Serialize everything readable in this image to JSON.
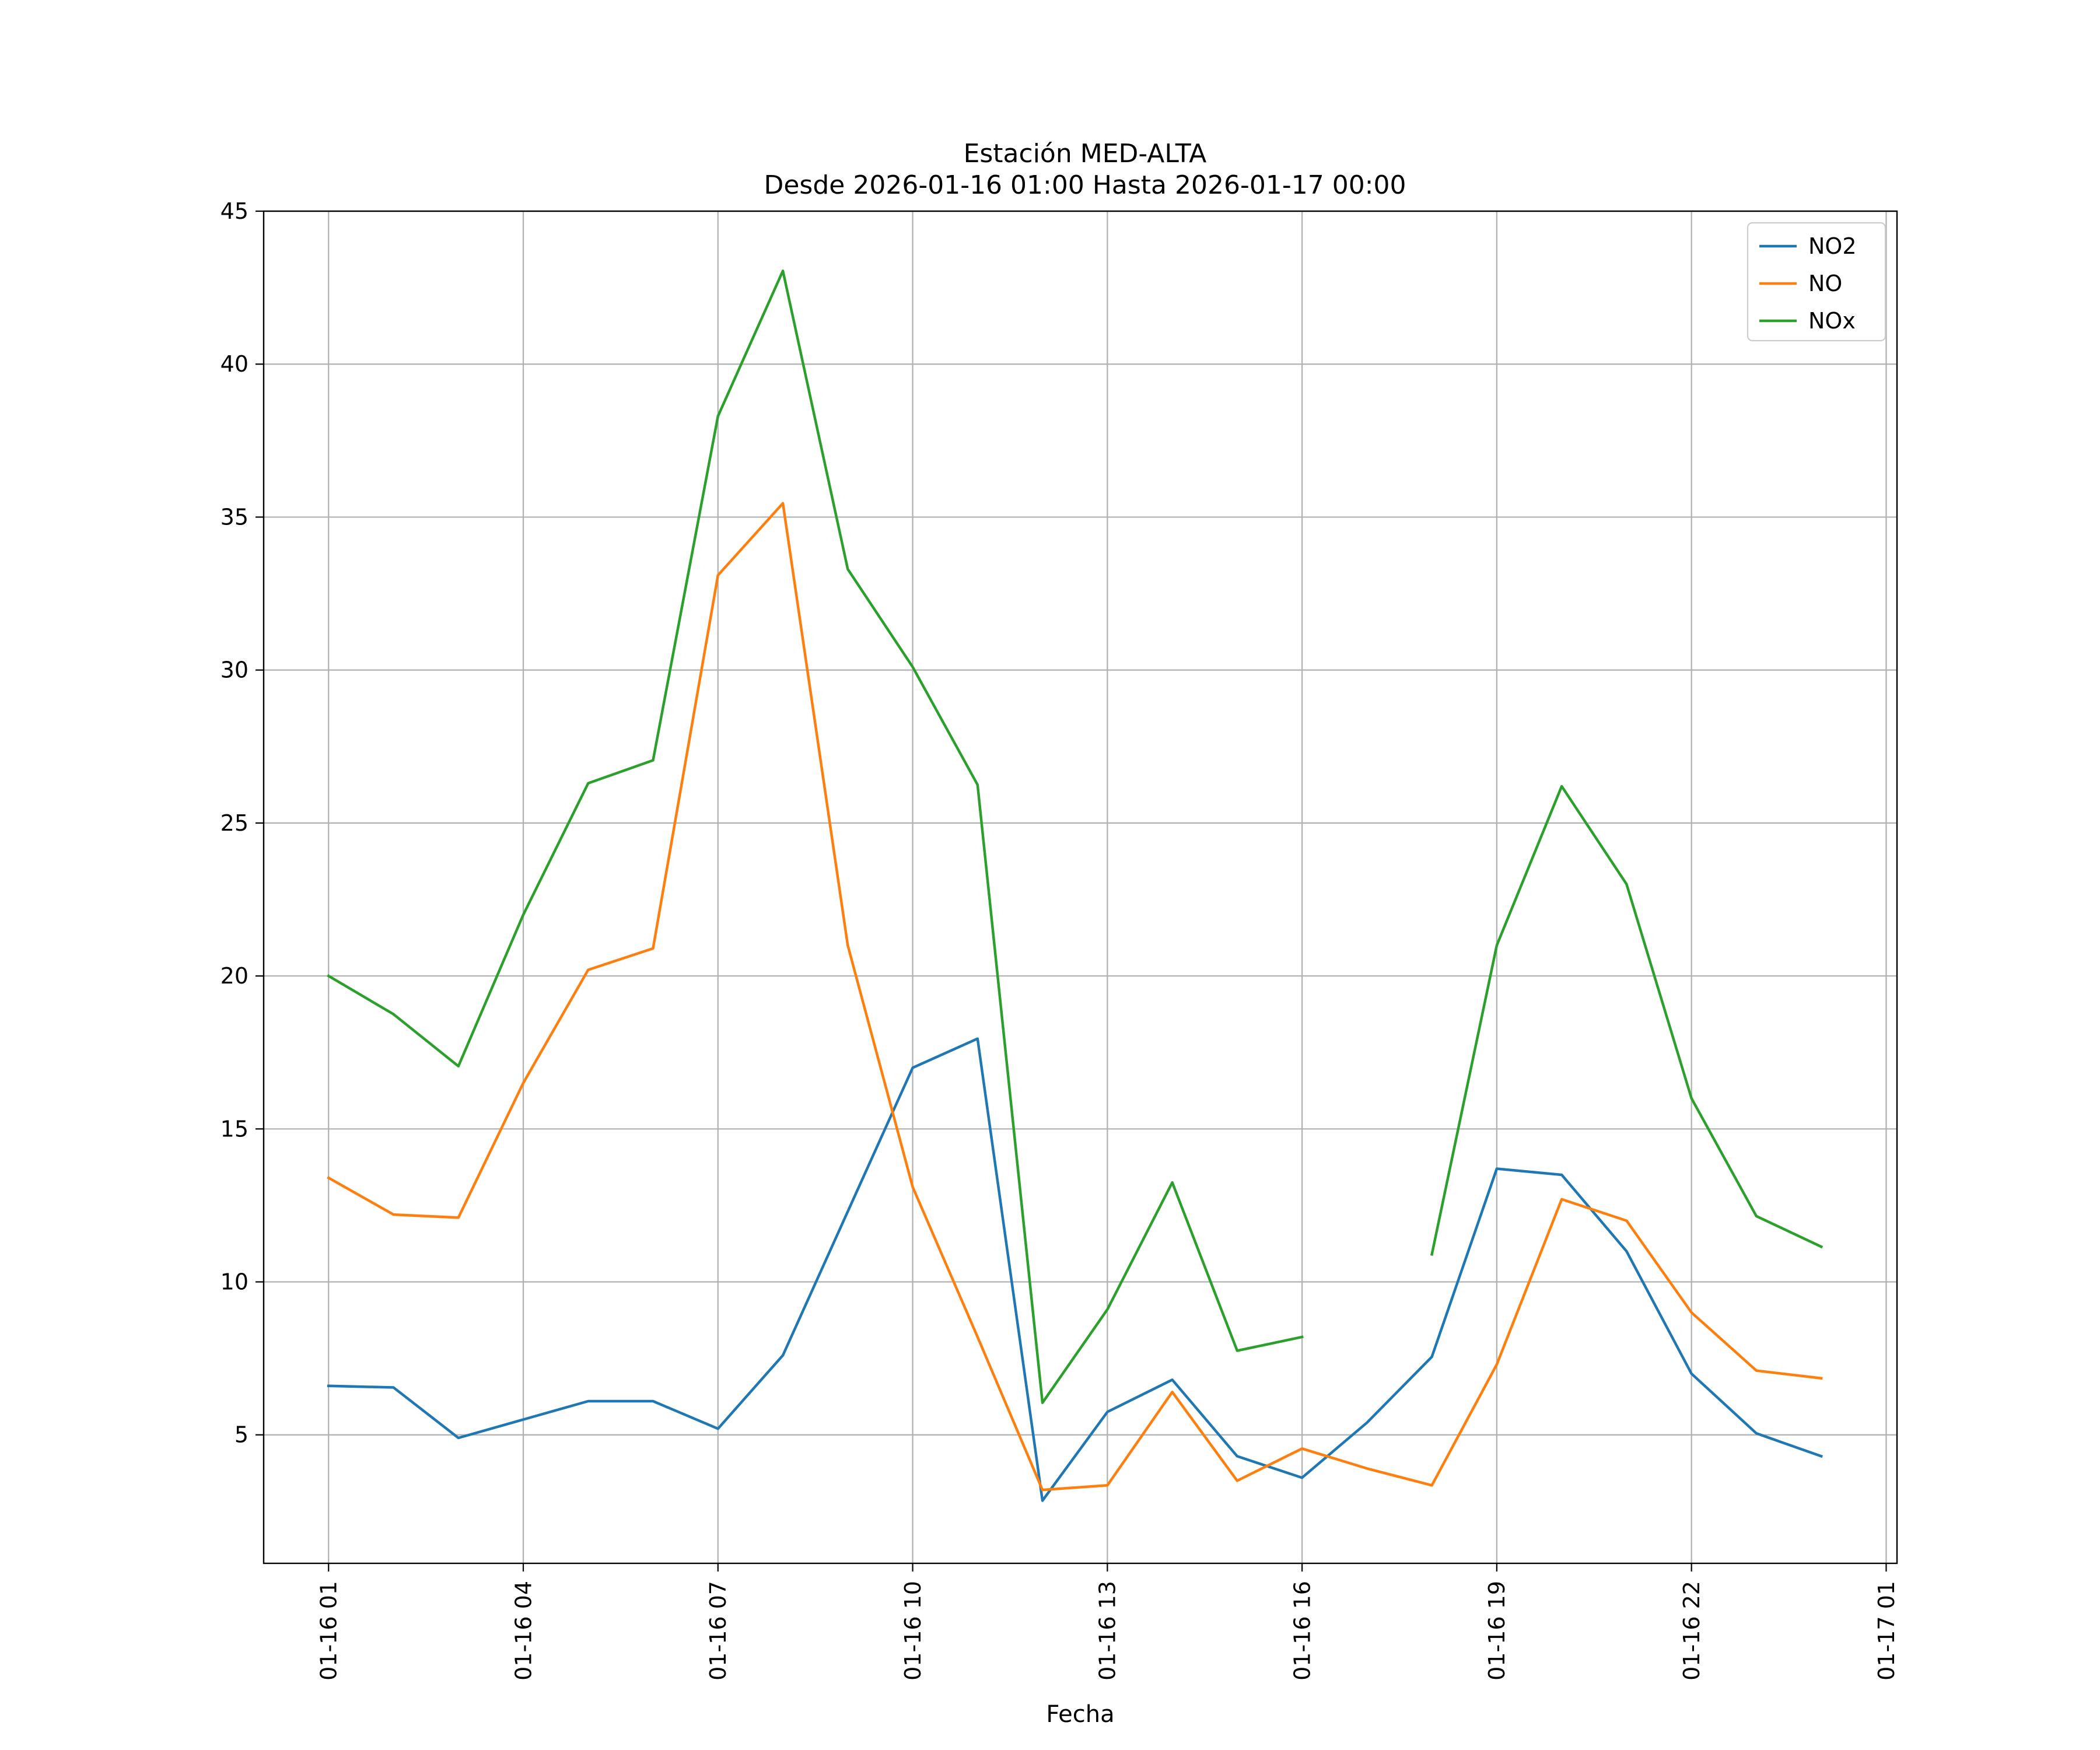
{
  "chart_data": {
    "type": "line",
    "title": [
      "Estación MED-ALTA",
      "Desde 2026-01-16 01:00 Hasta 2026-01-17 00:00"
    ],
    "xlabel": "Fecha",
    "ylabel": "",
    "x": [
      "2026-01-16 01:00",
      "2026-01-16 02:00",
      "2026-01-16 03:00",
      "2026-01-16 04:00",
      "2026-01-16 05:00",
      "2026-01-16 06:00",
      "2026-01-16 07:00",
      "2026-01-16 08:00",
      "2026-01-16 09:00",
      "2026-01-16 10:00",
      "2026-01-16 11:00",
      "2026-01-16 12:00",
      "2026-01-16 13:00",
      "2026-01-16 14:00",
      "2026-01-16 15:00",
      "2026-01-16 16:00",
      "2026-01-16 17:00",
      "2026-01-16 18:00",
      "2026-01-16 19:00",
      "2026-01-16 20:00",
      "2026-01-16 21:00",
      "2026-01-16 22:00",
      "2026-01-16 23:00",
      "2026-01-17 00:00"
    ],
    "x_ticks": [
      "01-16 01",
      "01-16 04",
      "01-16 07",
      "01-16 10",
      "01-16 13",
      "01-16 16",
      "01-16 19",
      "01-16 22",
      "01-17 01"
    ],
    "x_range": [
      "2026-01-16 00:00",
      "2026-01-17 01:10"
    ],
    "ylim": [
      0.8,
      45
    ],
    "y_ticks": [
      "5",
      "10",
      "15",
      "20",
      "25",
      "30",
      "35",
      "40",
      "45"
    ],
    "grid": true,
    "legend_position": "upper right",
    "series": [
      {
        "name": "NO2",
        "color": "#1f77b4",
        "values": [
          6.6,
          6.55,
          4.9,
          5.5,
          6.1,
          6.1,
          5.2,
          7.6,
          12.3,
          17.0,
          17.95,
          2.85,
          5.75,
          6.8,
          4.3,
          3.6,
          5.4,
          7.55,
          13.7,
          13.5,
          11.0,
          7.0,
          5.05,
          4.3
        ]
      },
      {
        "name": "NO",
        "color": "#ff7f0e",
        "values": [
          13.4,
          12.2,
          12.1,
          16.5,
          20.2,
          20.9,
          33.1,
          35.45,
          21.0,
          13.1,
          8.2,
          3.2,
          3.35,
          6.4,
          3.5,
          4.55,
          3.9,
          3.35,
          7.3,
          12.7,
          12.0,
          9.0,
          7.1,
          6.85
        ]
      },
      {
        "name": "NOx",
        "color": "#2ca02c",
        "values": [
          20.0,
          18.75,
          17.05,
          22.0,
          26.3,
          27.05,
          38.3,
          43.05,
          33.3,
          30.1,
          26.25,
          6.05,
          9.1,
          13.25,
          7.75,
          8.2,
          null,
          10.9,
          21.0,
          26.2,
          23.0,
          16.0,
          12.15,
          11.15
        ]
      }
    ]
  }
}
